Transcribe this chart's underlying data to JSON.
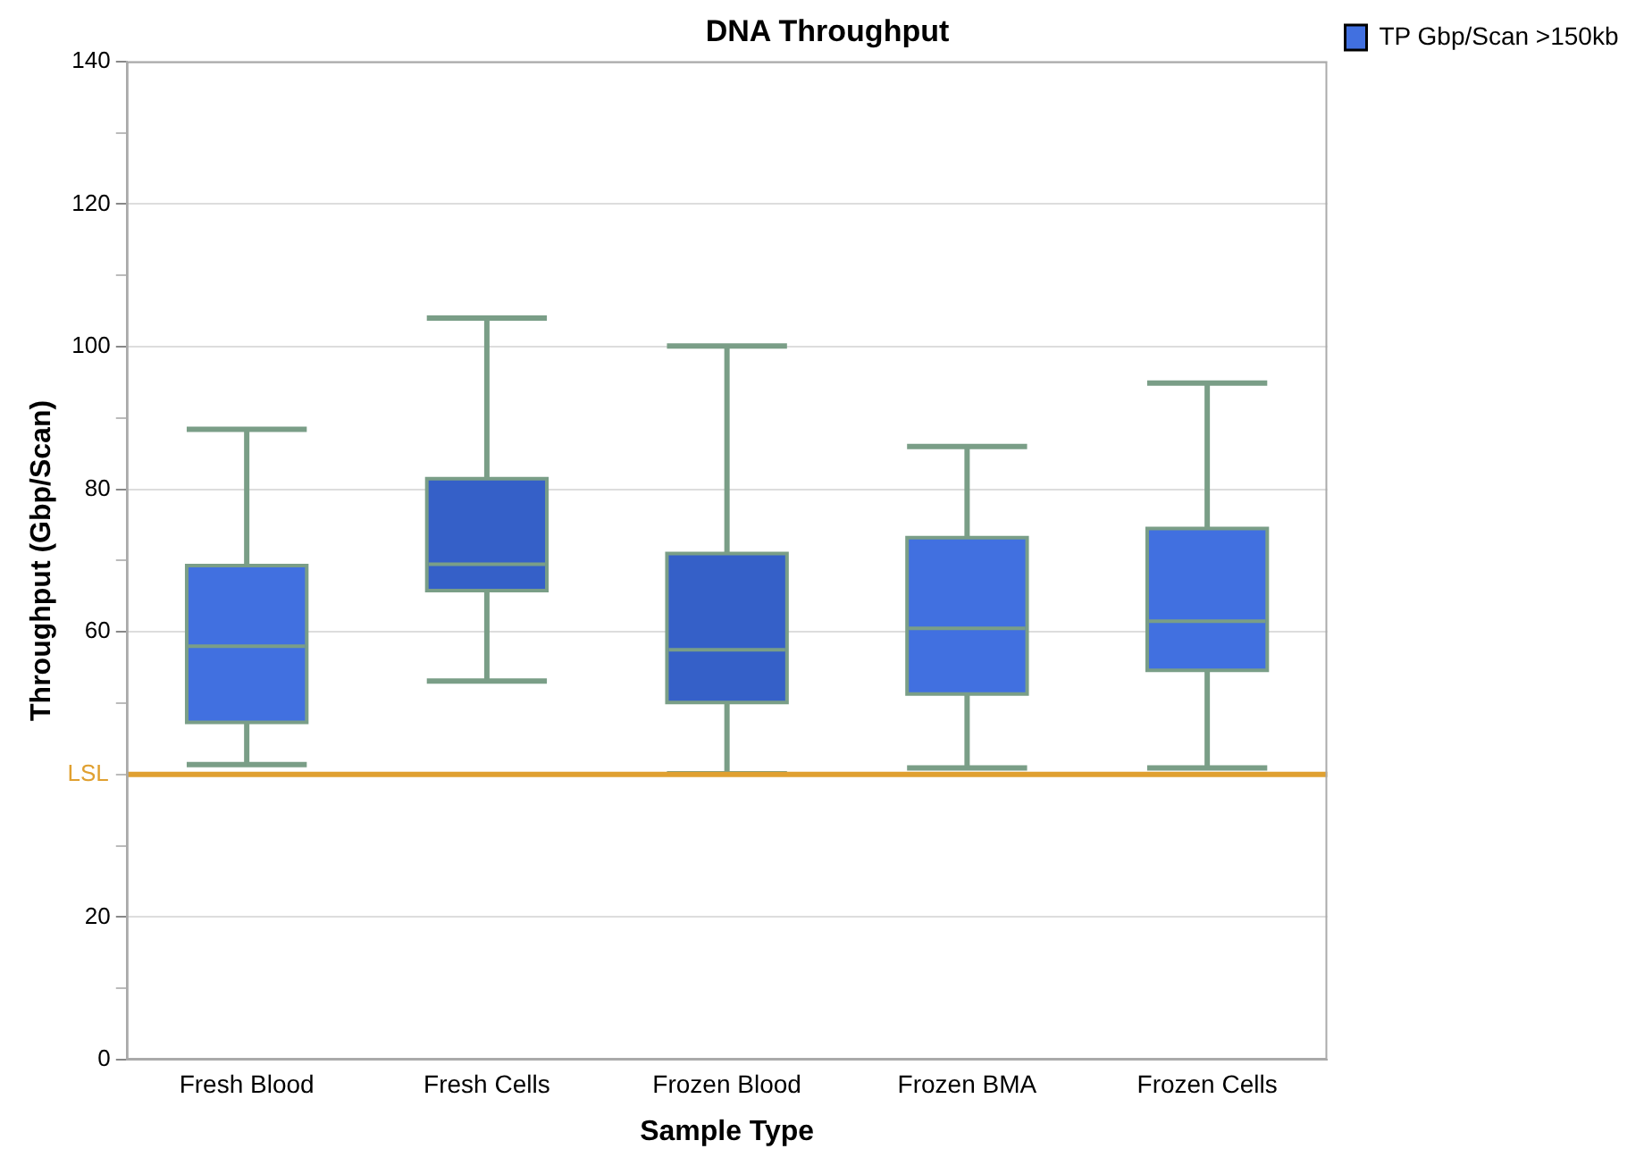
{
  "chart_data": {
    "type": "box",
    "title": "DNA Throughput",
    "xlabel": "Sample Type",
    "ylabel": "Throughput (Gbp/Scan)",
    "categories": [
      "Fresh Blood",
      "Fresh Cells",
      "Frozen Blood",
      "Frozen BMA",
      "Frozen Cells"
    ],
    "series": [
      {
        "name": "TP Gbp/Scan >150kb",
        "colors": [
          "#4170e0",
          "#3560c8",
          "#3560c8",
          "#4170e0",
          "#4170e0"
        ],
        "boxes": [
          {
            "low": 41.4,
            "q1": 47.3,
            "median": 58,
            "q3": 69.3,
            "high": 88.4
          },
          {
            "low": 53.1,
            "q1": 65.8,
            "median": 69.5,
            "q3": 81.5,
            "high": 104
          },
          {
            "low": 40.1,
            "q1": 50.1,
            "median": 57.5,
            "q3": 71,
            "high": 100.1
          },
          {
            "low": 40.9,
            "q1": 51.3,
            "median": 60.5,
            "q3": 73.2,
            "high": 86
          },
          {
            "low": 40.9,
            "q1": 54.6,
            "median": 61.5,
            "q3": 74.5,
            "high": 94.9
          }
        ]
      }
    ],
    "ylim": [
      0,
      140
    ],
    "yticks": [
      0,
      {
        "value": 10,
        "label": null
      },
      20,
      {
        "value": 30,
        "label": null
      },
      {
        "value": 40,
        "label": null
      },
      {
        "value": 50,
        "label": null
      },
      60,
      {
        "value": 70,
        "label": null
      },
      80,
      {
        "value": 90,
        "label": null
      },
      100,
      {
        "value": 110,
        "label": null
      },
      120,
      {
        "value": 130,
        "label": null
      },
      140
    ],
    "ref_lines": [
      {
        "axis": "y",
        "value": 40,
        "label": "LSL",
        "color": "#e0a030"
      }
    ],
    "grid": "y",
    "legend": "top right"
  }
}
